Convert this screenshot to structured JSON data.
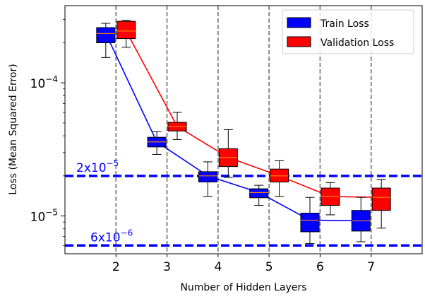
{
  "chart_data": {
    "type": "box",
    "xlabel": "Number of Hidden Layers",
    "ylabel": "Loss (Mean Squared Error)",
    "yscale": "log",
    "xlim": [
      1.0,
      8.0
    ],
    "ylim": [
      5.2e-06,
      0.00038
    ],
    "grid": "vertical dashed lines at each category",
    "legend_position": "upper right",
    "categories": [
      2,
      3,
      4,
      5,
      6,
      7
    ],
    "x_ticks": [
      "2",
      "3",
      "4",
      "5",
      "6",
      "7"
    ],
    "y_ticks": [
      {
        "value": 1e-05,
        "base": "10",
        "exp": "−5"
      },
      {
        "value": 0.0001,
        "base": "10",
        "exp": "−4"
      }
    ],
    "series": [
      {
        "name": "Train Loss",
        "color": "#0000ff",
        "offset": -0.2,
        "boxes": [
          {
            "whislo": 0.000155,
            "q1": 0.0002,
            "med": 0.000235,
            "q3": 0.00026,
            "whishi": 0.00028
          },
          {
            "whislo": 2.9e-05,
            "q1": 3.3e-05,
            "med": 3.6e-05,
            "q3": 3.9e-05,
            "whishi": 4.3e-05
          },
          {
            "whislo": 1.4e-05,
            "q1": 1.8e-05,
            "med": 2e-05,
            "q3": 2.15e-05,
            "whishi": 2.55e-05
          },
          {
            "whislo": 1.2e-05,
            "q1": 1.37e-05,
            "med": 1.5e-05,
            "q3": 1.6e-05,
            "whishi": 1.7e-05
          },
          {
            "whislo": 6.2e-06,
            "q1": 7.6e-06,
            "med": 9.3e-06,
            "q3": 1.05e-05,
            "whishi": 1.38e-05
          },
          {
            "whislo": 6.4e-06,
            "q1": 7.7e-06,
            "med": 9.2e-06,
            "q3": 1.1e-05,
            "whishi": 1.38e-05
          }
        ]
      },
      {
        "name": "Validation Loss",
        "color": "#ff0000",
        "offset": 0.2,
        "boxes": [
          {
            "whislo": 0.000185,
            "q1": 0.000215,
            "med": 0.000245,
            "q3": 0.00029,
            "whishi": 0.000295
          },
          {
            "whislo": 3.75e-05,
            "q1": 4.35e-05,
            "med": 4.7e-05,
            "q3": 5.05e-05,
            "whishi": 6e-05
          },
          {
            "whislo": 1.95e-05,
            "q1": 2.35e-05,
            "med": 2.75e-05,
            "q3": 3.2e-05,
            "whishi": 4.45e-05
          },
          {
            "whislo": 1.4e-05,
            "q1": 1.8e-05,
            "med": 2e-05,
            "q3": 2.25e-05,
            "whishi": 2.6e-05
          },
          {
            "whislo": 1.02e-05,
            "q1": 1.2e-05,
            "med": 1.4e-05,
            "q3": 1.62e-05,
            "whishi": 1.78e-05
          },
          {
            "whislo": 8.1e-06,
            "q1": 1.1e-05,
            "med": 1.38e-05,
            "q3": 1.62e-05,
            "whishi": 1.88e-05
          }
        ]
      }
    ],
    "reference_lines": [
      {
        "value": 2e-05,
        "base": "2x10",
        "exp": "−5",
        "color": "#0000ff"
      },
      {
        "value": 6e-06,
        "base": "6x10",
        "exp": "−6",
        "color": "#0000ff"
      }
    ]
  }
}
